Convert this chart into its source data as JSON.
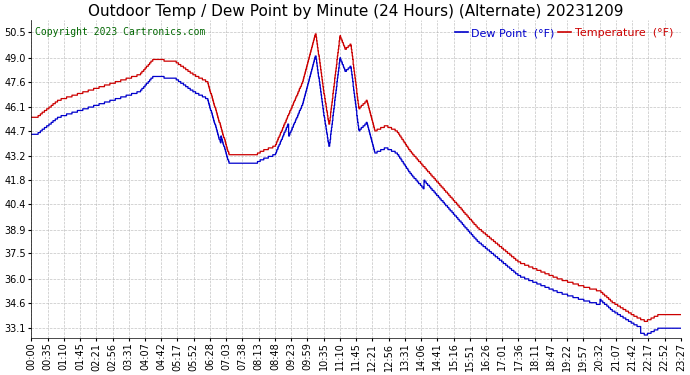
{
  "title": "Outdoor Temp / Dew Point by Minute (24 Hours) (Alternate) 20231209",
  "copyright": "Copyright 2023 Cartronics.com",
  "legend_dew": "Dew Point  (°F)",
  "legend_temp": "Temperature  (°F)",
  "dew_color": "#0000cc",
  "temp_color": "#cc0000",
  "bg_color": "#ffffff",
  "grid_color": "#aaaaaa",
  "yticks": [
    33.1,
    34.6,
    36.0,
    37.5,
    38.9,
    40.4,
    41.8,
    43.2,
    44.7,
    46.1,
    47.6,
    49.0,
    50.5
  ],
  "ylim": [
    32.5,
    51.2
  ],
  "xtick_labels": [
    "00:00",
    "00:35",
    "01:10",
    "01:45",
    "02:21",
    "02:56",
    "03:31",
    "04:07",
    "04:42",
    "05:17",
    "05:52",
    "06:28",
    "07:03",
    "07:38",
    "08:13",
    "08:48",
    "09:23",
    "09:59",
    "10:35",
    "11:10",
    "11:45",
    "12:21",
    "12:56",
    "13:31",
    "14:06",
    "14:41",
    "15:16",
    "15:51",
    "16:26",
    "17:01",
    "17:36",
    "18:11",
    "18:47",
    "19:22",
    "19:57",
    "20:32",
    "21:07",
    "21:42",
    "22:17",
    "22:52",
    "23:27"
  ],
  "title_fontsize": 11,
  "axis_fontsize": 7,
  "legend_fontsize": 8,
  "copyright_fontsize": 7
}
